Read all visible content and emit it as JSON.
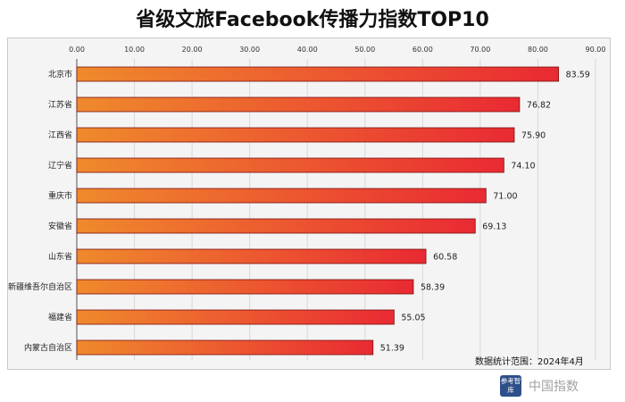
{
  "title": "省级文旅Facebook传播力指数TOP10",
  "note": "数据统计范围：2024年4月",
  "logo": {
    "text": "参考智库"
  },
  "watermark": {
    "text": "中国指数"
  },
  "chart_data": {
    "type": "bar",
    "orientation": "horizontal",
    "title": "省级文旅Facebook传播力指数TOP10",
    "categories": [
      "北京市",
      "江苏省",
      "江西省",
      "辽宁省",
      "重庆市",
      "安徽省",
      "山东省",
      "新疆维吾尔自治区",
      "福建省",
      "内蒙古自治区"
    ],
    "values": [
      83.59,
      76.82,
      75.9,
      74.1,
      71.0,
      69.13,
      60.58,
      58.39,
      55.05,
      51.39
    ],
    "value_labels": [
      "83.59",
      "76.82",
      "75.90",
      "74.10",
      "71.00",
      "69.13",
      "60.58",
      "58.39",
      "55.05",
      "51.39"
    ],
    "xlim": [
      0,
      90
    ],
    "ticks": [
      "0.00",
      "10.00",
      "20.00",
      "30.00",
      "40.00",
      "50.00",
      "60.00",
      "70.00",
      "80.00",
      "90.00"
    ],
    "tick_values": [
      0,
      10,
      20,
      30,
      40,
      50,
      60,
      70,
      80,
      90
    ],
    "axis_position": "top",
    "grid": true,
    "colors": {
      "bar_start": "#ef8a2c",
      "bar_end": "#e92a33",
      "grid": "#d8d8d8",
      "axis": "#555555"
    }
  }
}
